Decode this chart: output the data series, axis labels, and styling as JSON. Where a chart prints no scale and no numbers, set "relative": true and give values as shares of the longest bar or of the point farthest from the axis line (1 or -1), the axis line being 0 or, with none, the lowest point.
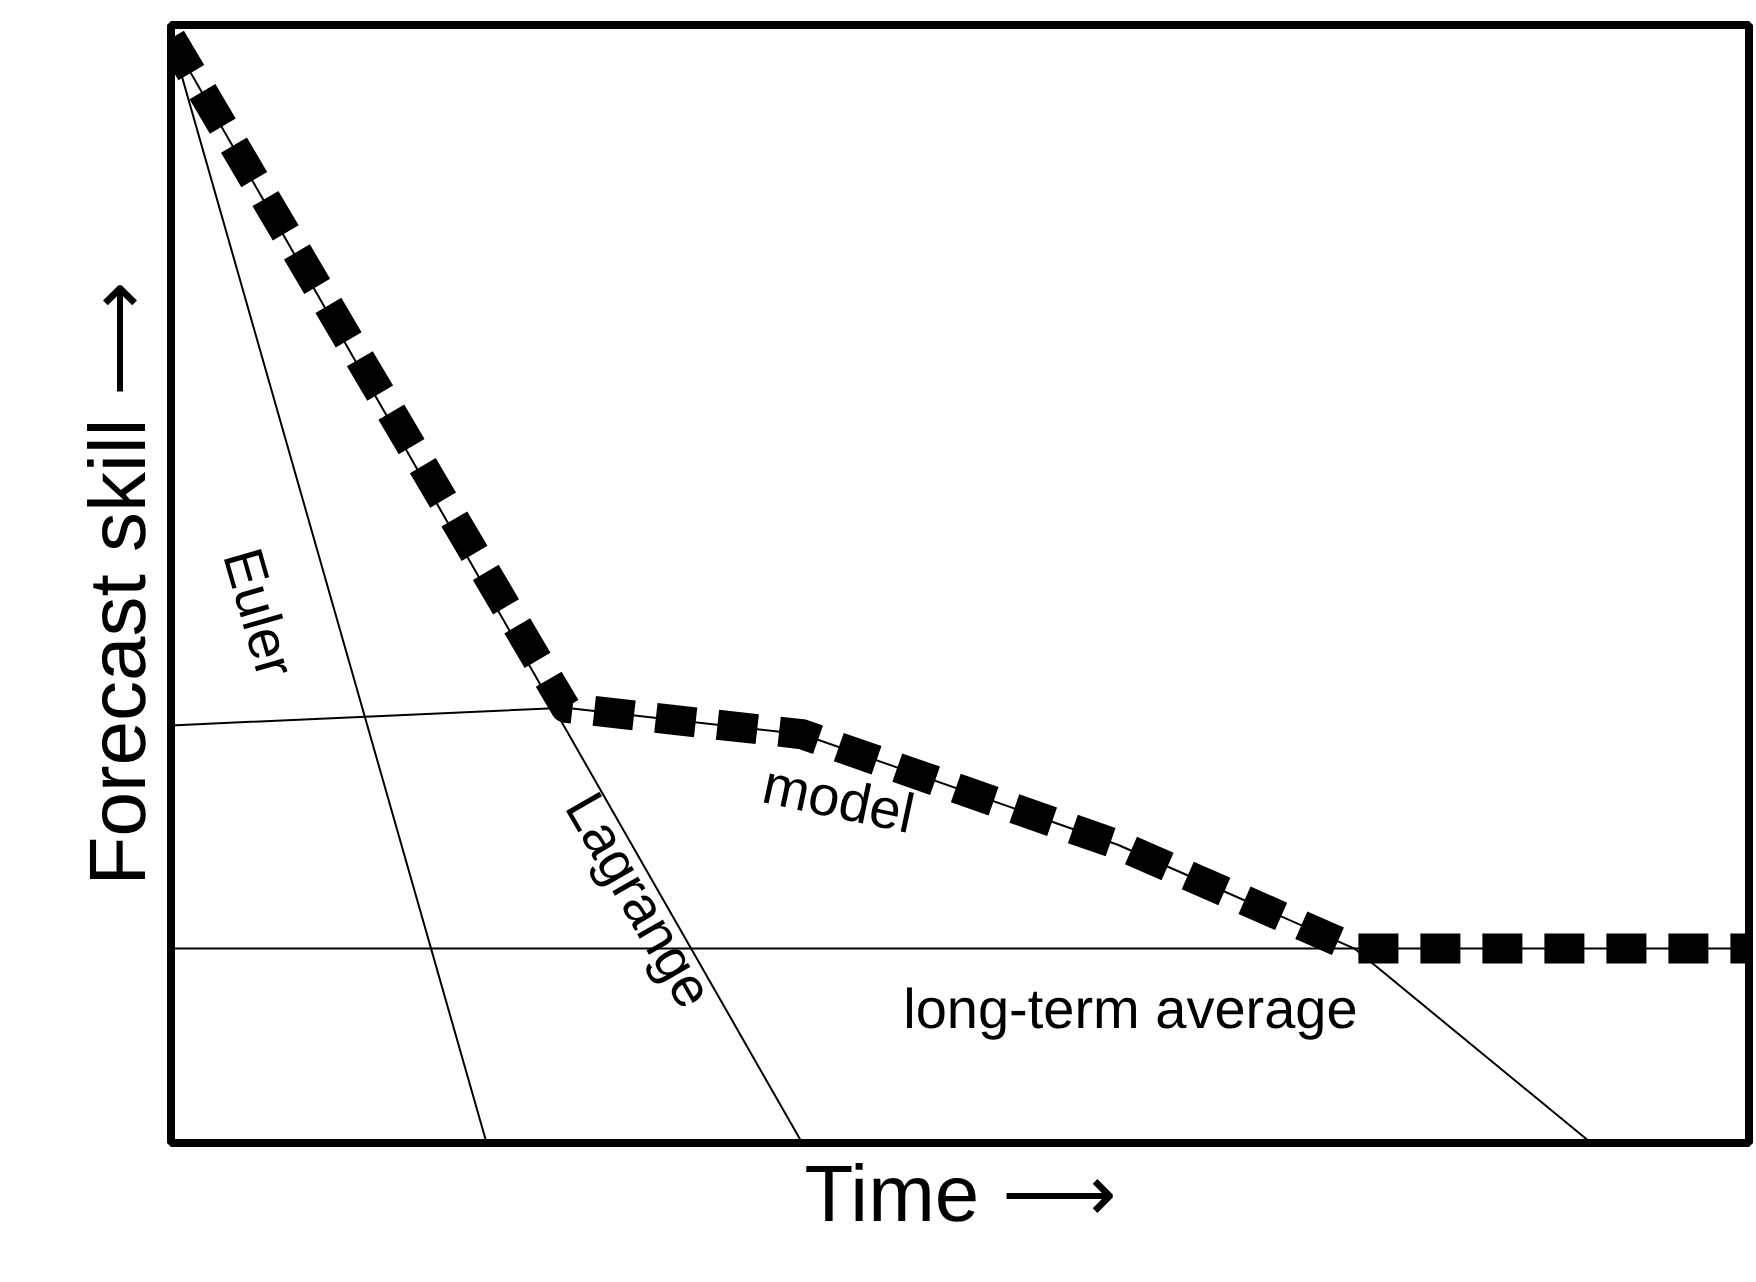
{
  "chart_data": {
    "type": "line",
    "relative": true,
    "xlabel": "Time ⟶",
    "ylabel": "Forecast skill ⟶",
    "categories": [
      null,
      null,
      null,
      null,
      null,
      null,
      null,
      null,
      null,
      null,
      null,
      null,
      null,
      null,
      null,
      null,
      null,
      null,
      null,
      null,
      null
    ],
    "series": [
      {
        "name": "Euler",
        "color": "#000000",
        "line_style": "solid",
        "values": [
          1,
          null,
          null,
          null,
          0,
          null,
          null,
          null,
          null,
          null,
          null,
          null,
          null,
          null,
          null,
          null,
          null,
          null,
          null,
          null,
          null
        ]
      },
      {
        "name": "Lagrange",
        "color": "#000000",
        "line_style": "solid",
        "values": [
          1,
          null,
          null,
          null,
          null,
          null,
          null,
          null,
          0,
          null,
          null,
          null,
          null,
          null,
          null,
          null,
          null,
          null,
          null,
          null,
          null
        ]
      },
      {
        "name": "model",
        "color": "#000000",
        "line_style": "solid",
        "values": [
          0.378,
          null,
          null,
          null,
          null,
          0.394,
          null,
          null,
          0.37,
          null,
          null,
          null,
          0.27,
          null,
          null,
          0.176,
          null,
          null,
          0,
          null,
          null
        ]
      },
      {
        "name": "long-term average",
        "color": "#000000",
        "line_style": "solid",
        "values": [
          0.176,
          null,
          null,
          null,
          null,
          null,
          null,
          null,
          null,
          null,
          null,
          null,
          null,
          null,
          null,
          null,
          null,
          null,
          null,
          null,
          0.176
        ]
      },
      {
        "color": "#000000",
        "line_style": "dashed",
        "values": [
          1,
          null,
          null,
          null,
          null,
          0.394,
          null,
          null,
          0.37,
          null,
          null,
          null,
          0.27,
          null,
          null,
          0.176,
          null,
          null,
          null,
          null,
          0.176
        ]
      }
    ]
  }
}
